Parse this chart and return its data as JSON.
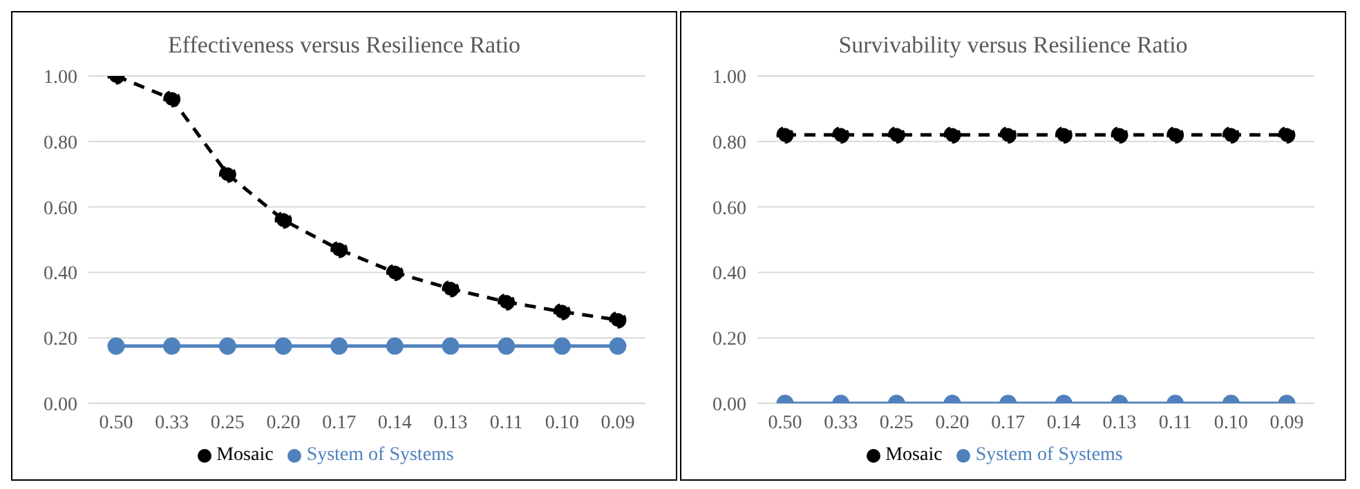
{
  "chart_data": [
    {
      "type": "line",
      "title": "Effectiveness versus Resilience Ratio",
      "categories": [
        "0.50",
        "0.33",
        "0.25",
        "0.20",
        "0.17",
        "0.14",
        "0.13",
        "0.11",
        "0.10",
        "0.09"
      ],
      "series": [
        {
          "name": "System of Systems",
          "color": "#4f81bd",
          "line_style": "solid",
          "values": [
            0.175,
            0.175,
            0.175,
            0.175,
            0.175,
            0.175,
            0.175,
            0.175,
            0.175,
            0.175
          ]
        },
        {
          "name": "Mosaic",
          "color": "#000000",
          "line_style": "dashed",
          "values": [
            1.0,
            0.93,
            0.7,
            0.56,
            0.47,
            0.4,
            0.35,
            0.31,
            0.28,
            0.255
          ]
        }
      ],
      "ylim": [
        0,
        1
      ],
      "yticks": [
        {
          "value": 0,
          "label": "0.00"
        },
        {
          "value": 0.2,
          "label": "0.20"
        },
        {
          "value": 0.4,
          "label": "0.40"
        },
        {
          "value": 0.6,
          "label": "0.60"
        },
        {
          "value": 0.8,
          "label": "0.80"
        },
        {
          "value": 1,
          "label": "1.00"
        }
      ],
      "grid": "y",
      "legend": "bottom",
      "marker": "circle"
    },
    {
      "type": "line",
      "title": "Survivability versus Resilience Ratio",
      "categories": [
        "0.50",
        "0.33",
        "0.25",
        "0.20",
        "0.17",
        "0.14",
        "0.13",
        "0.11",
        "0.10",
        "0.09"
      ],
      "series": [
        {
          "name": "System of Systems",
          "color": "#4f81bd",
          "line_style": "solid",
          "values": [
            0,
            0,
            0,
            0,
            0,
            0,
            0,
            0,
            0,
            0
          ]
        },
        {
          "name": "Mosaic",
          "color": "#000000",
          "line_style": "dashed",
          "values": [
            0.82,
            0.82,
            0.82,
            0.82,
            0.82,
            0.82,
            0.82,
            0.82,
            0.82,
            0.82
          ]
        }
      ],
      "ylim": [
        0,
        1
      ],
      "yticks": [
        {
          "value": 0,
          "label": "0.00"
        },
        {
          "value": 0.2,
          "label": "0.20"
        },
        {
          "value": 0.4,
          "label": "0.40"
        },
        {
          "value": 0.6,
          "label": "0.60"
        },
        {
          "value": 0.8,
          "label": "0.80"
        },
        {
          "value": 1,
          "label": "1.00"
        }
      ],
      "grid": "y",
      "legend": "bottom",
      "marker": "circle"
    }
  ]
}
